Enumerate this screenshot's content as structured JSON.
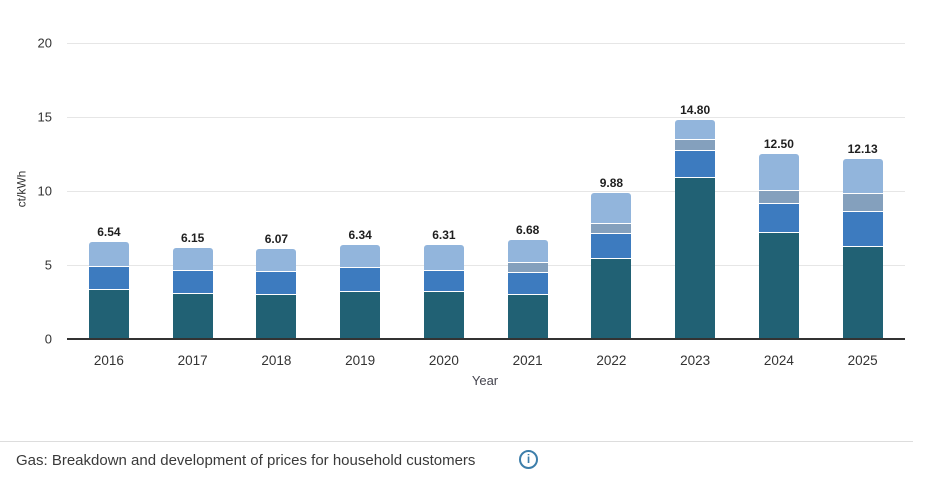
{
  "chart_data": {
    "type": "bar",
    "stacked": true,
    "title": "",
    "xlabel": "Year",
    "ylabel": "ct/kWh",
    "ylim": [
      0,
      20
    ],
    "yticks": [
      0,
      5,
      10,
      15,
      20
    ],
    "grid": true,
    "legend": "none",
    "categories": [
      "2016",
      "2017",
      "2018",
      "2019",
      "2020",
      "2021",
      "2022",
      "2023",
      "2024",
      "2025"
    ],
    "series": [
      {
        "name": "segment-dark-teal",
        "color": "#216174",
        "values": [
          3.3,
          3.04,
          2.97,
          3.13,
          3.13,
          2.95,
          5.36,
          10.85,
          7.12,
          6.22
        ]
      },
      {
        "name": "segment-medium-blue",
        "color": "#3d7bbf",
        "values": [
          1.53,
          1.54,
          1.5,
          1.65,
          1.47,
          1.47,
          1.7,
          1.84,
          1.99,
          2.31
        ]
      },
      {
        "name": "segment-gray-blue",
        "color": "#84a0bd",
        "values": [
          0,
          0,
          0,
          0,
          0,
          0.68,
          0.68,
          0.72,
          0.84,
          1.27
        ]
      },
      {
        "name": "segment-light-blue",
        "color": "#92b5dc",
        "values": [
          1.71,
          1.57,
          1.6,
          1.56,
          1.71,
          1.58,
          2.14,
          1.39,
          2.55,
          2.33
        ]
      }
    ],
    "totals": [
      6.54,
      6.15,
      6.07,
      6.34,
      6.31,
      6.68,
      9.88,
      14.8,
      12.5,
      12.13
    ],
    "total_labels": [
      "6.54",
      "6.15",
      "6.07",
      "6.34",
      "6.31",
      "6.68",
      "9.88",
      "14.80",
      "12.50",
      "12.13"
    ]
  },
  "footer": {
    "caption": "Gas: Breakdown and development of prices for household customers",
    "info_icon_glyph": "i"
  },
  "colors": {
    "gridline": "#e6e6e6",
    "axis_line": "#333333",
    "tick_label": "#333333",
    "value_label": "#1f1f1f",
    "caption_text": "#3a3a3a",
    "info_icon": "#3d7eaa"
  }
}
